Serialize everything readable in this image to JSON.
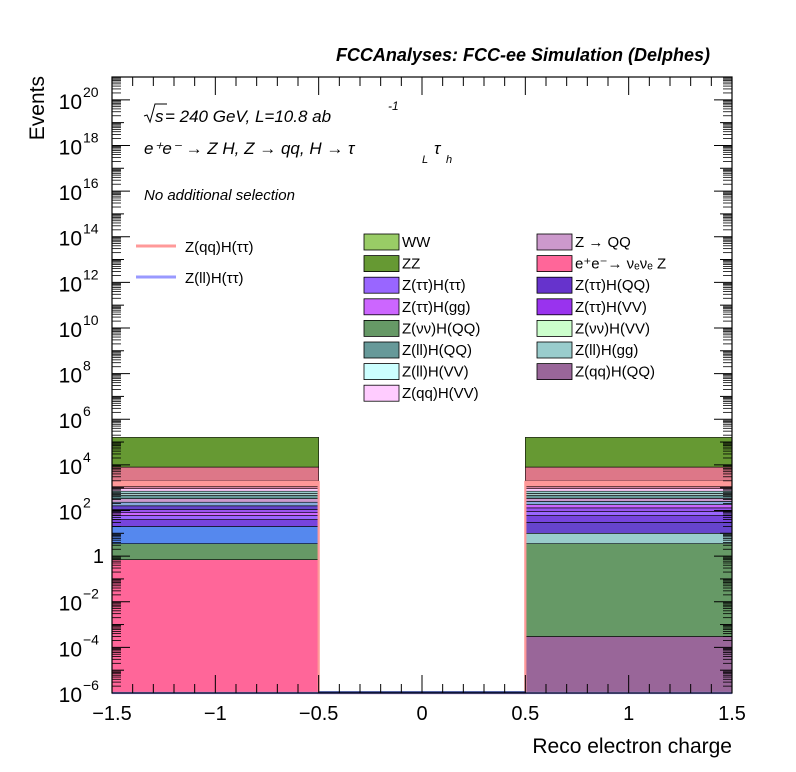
{
  "chart_data": {
    "type": "bar",
    "stacked": true,
    "title": "FCCAnalyses: FCC-ee Simulation (Delphes)",
    "xlabel": "Reco electron charge",
    "ylabel": "Events",
    "xlim": [
      -1.5,
      1.5
    ],
    "ylim": [
      1e-06,
      1e+21
    ],
    "y_scale": "log",
    "x_ticks": [
      "−1.5",
      "−1",
      "−0.5",
      "0",
      "0.5",
      "1",
      "1.5"
    ],
    "y_tick_labels": [
      {
        "base": "10",
        "exp": "−6",
        "value": 1e-06
      },
      {
        "base": "10",
        "exp": "−4",
        "value": 0.0001
      },
      {
        "base": "10",
        "exp": "−2",
        "value": 0.01
      },
      {
        "base": "1",
        "exp": "",
        "value": 1
      },
      {
        "base": "10",
        "exp": "2",
        "value": 100.0
      },
      {
        "base": "10",
        "exp": "4",
        "value": 10000.0
      },
      {
        "base": "10",
        "exp": "6",
        "value": 1000000.0
      },
      {
        "base": "10",
        "exp": "8",
        "value": 100000000.0
      },
      {
        "base": "10",
        "exp": "10",
        "value": 10000000000.0
      },
      {
        "base": "10",
        "exp": "12",
        "value": 1000000000000.0
      },
      {
        "base": "10",
        "exp": "14",
        "value": 100000000000000.0
      },
      {
        "base": "10",
        "exp": "16",
        "value": 1e+16
      },
      {
        "base": "10",
        "exp": "18",
        "value": 1e+18
      },
      {
        "base": "10",
        "exp": "20",
        "value": 1e+20
      }
    ],
    "bins": [
      {
        "low": -1.5,
        "high": -0.5,
        "boundaries": [
          1e-06,
          0.7,
          3.5,
          20,
          40,
          60,
          80,
          110,
          160,
          230,
          330,
          450,
          550,
          700,
          900,
          1100,
          2000,
          8000,
          160000
        ],
        "colors": [
          "#ff6699",
          "#669966",
          "#5588ee",
          "#7744dd",
          "#9966ff",
          "#cc66ff",
          "#9955ee",
          "#6644cc",
          "#88aadd",
          "#cc99cc",
          "#669999",
          "#aacccc",
          "#99cccc",
          "#ffccff",
          "#dd88aa",
          "#ff9999",
          "#dd7788",
          "#669933",
          "#99cc66"
        ]
      },
      {
        "low": 0.5,
        "high": 1.5,
        "boundaries": [
          1e-06,
          0.0003,
          3.5,
          10,
          30,
          60,
          90,
          130,
          180,
          250,
          340,
          450,
          560,
          700,
          900,
          1100,
          2000,
          8000,
          160000
        ],
        "colors": [
          "#996699",
          "#669966",
          "#99cccc",
          "#6644cc",
          "#7744dd",
          "#9966ff",
          "#9955ee",
          "#cc66ff",
          "#88aadd",
          "#cc99cc",
          "#669999",
          "#aacccc",
          "#99cccc",
          "#ffccff",
          "#dd88aa",
          "#ff9999",
          "#dd7788",
          "#669933",
          "#99cc66"
        ]
      }
    ],
    "overlay_lines": [
      {
        "name": "Z(qq)H(ττ)",
        "color": "#ff9999",
        "values": [
          {
            "low": -1.5,
            "high": -0.5,
            "value": 1800
          },
          {
            "low": -0.5,
            "high": 0.5,
            "value": 1e-06
          },
          {
            "low": 0.5,
            "high": 1.5,
            "value": 1800
          }
        ]
      },
      {
        "name": "Z(ll)H(ττ)",
        "color": "#9999ff",
        "values": [
          {
            "low": -1.5,
            "high": -0.5,
            "value": 1e-06
          },
          {
            "low": -0.5,
            "high": 0.5,
            "value": 1e-06
          },
          {
            "low": 0.5,
            "high": 1.5,
            "value": 1e-06
          }
        ]
      }
    ],
    "legend_lines": [
      {
        "name": "Z(qq)H(ττ)",
        "color": "#ff9999"
      },
      {
        "name": "Z(ll)H(ττ)",
        "color": "#9999ff"
      }
    ],
    "legend_col1": [
      {
        "name": "WW",
        "color": "#99cc66"
      },
      {
        "name": "ZZ",
        "color": "#669933"
      },
      {
        "name": "Z(ττ)H(ττ)",
        "color": "#9966ff"
      },
      {
        "name": "Z(ττ)H(gg)",
        "color": "#cc66ff"
      },
      {
        "name": "Z(νν)H(QQ)",
        "color": "#669966"
      },
      {
        "name": "Z(ll)H(QQ)",
        "color": "#669999"
      },
      {
        "name": "Z(ll)H(VV)",
        "color": "#ccffff"
      },
      {
        "name": "Z(qq)H(VV)",
        "color": "#ffccff"
      }
    ],
    "legend_col2": [
      {
        "name": "Z → QQ",
        "color": "#cc99cc"
      },
      {
        "name": "e⁺e⁻→ νₑνₑ Z",
        "color": "#ff6699"
      },
      {
        "name": "Z(ττ)H(QQ)",
        "color": "#6633cc"
      },
      {
        "name": "Z(ττ)H(VV)",
        "color": "#9933ee"
      },
      {
        "name": "Z(νν)H(VV)",
        "color": "#ccffcc"
      },
      {
        "name": "Z(ll)H(gg)",
        "color": "#99cccc"
      },
      {
        "name": "Z(qq)H(QQ)",
        "color": "#996699"
      }
    ],
    "annotations": {
      "sqrt_s": "s",
      "energy_lumi": " = 240 GeV, L=10.8 ab",
      "lumi_exp": "-1",
      "process": "e⁺e⁻ → Z H, Z → qq, H → τ",
      "sub_L": "L",
      "tau2": "τ",
      "sub_h": "h",
      "selection": "No additional selection"
    }
  }
}
